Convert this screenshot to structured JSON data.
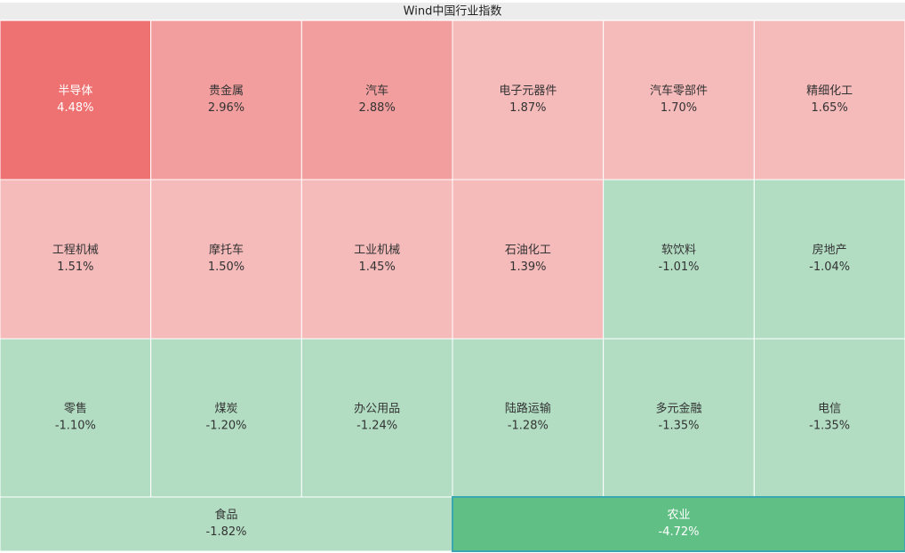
{
  "chart_data": {
    "type": "treemap",
    "title": "Wind中国行业指数",
    "categories": [
      "半导体",
      "贵金属",
      "汽车",
      "电子元器件",
      "汽车零部件",
      "精细化工",
      "工程机械",
      "摩托车",
      "工业机械",
      "石油化工",
      "软饮料",
      "房地产",
      "零售",
      "煤炭",
      "办公用品",
      "陆路运输",
      "多元金融",
      "电信",
      "食品",
      "农业"
    ],
    "values": [
      4.48,
      2.96,
      2.88,
      1.87,
      1.7,
      1.65,
      1.51,
      1.5,
      1.45,
      1.39,
      -1.01,
      -1.04,
      -1.1,
      -1.2,
      -1.24,
      -1.28,
      -1.35,
      -1.35,
      -1.82,
      -4.72
    ],
    "value_labels": [
      "4.48%",
      "2.96%",
      "2.88%",
      "1.87%",
      "1.70%",
      "1.65%",
      "1.51%",
      "1.50%",
      "1.45%",
      "1.39%",
      "-1.01%",
      "-1.04%",
      "-1.10%",
      "-1.20%",
      "-1.24%",
      "-1.28%",
      "-1.35%",
      "-1.35%",
      "-1.82%",
      "-4.72%"
    ],
    "colors": [
      "#ee7272",
      "#f29e9e",
      "#f29e9e",
      "#f5baba",
      "#f5baba",
      "#f5baba",
      "#f5baba",
      "#f5baba",
      "#f5baba",
      "#f5baba",
      "#b2ddc3",
      "#b2ddc3",
      "#b2ddc3",
      "#b2ddc3",
      "#b2ddc3",
      "#b2ddc3",
      "#b2ddc3",
      "#b2ddc3",
      "#b2ddc3",
      "#60bf84"
    ]
  }
}
